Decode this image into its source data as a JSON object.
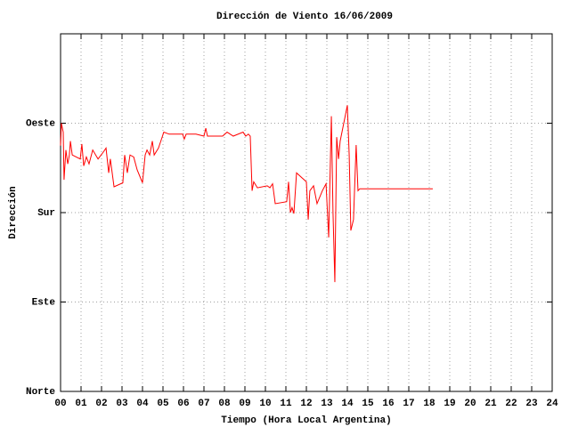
{
  "chart_data": {
    "type": "line",
    "title": "Dirección de Viento 16/06/2009",
    "x_label": "Tiempo (Hora Local Argentina)",
    "y_label": "Dirección",
    "color": "#ff0000",
    "grid": true,
    "xlim": [
      0,
      24
    ],
    "ylim": [
      0,
      360
    ],
    "xticks": [
      {
        "value": 0,
        "label": "00"
      },
      {
        "value": 1,
        "label": "01"
      },
      {
        "value": 2,
        "label": "02"
      },
      {
        "value": 3,
        "label": "03"
      },
      {
        "value": 4,
        "label": "04"
      },
      {
        "value": 5,
        "label": "05"
      },
      {
        "value": 6,
        "label": "06"
      },
      {
        "value": 7,
        "label": "07"
      },
      {
        "value": 8,
        "label": "08"
      },
      {
        "value": 9,
        "label": "09"
      },
      10,
      11,
      12,
      13,
      14,
      15,
      16,
      17,
      18,
      19,
      20,
      21,
      22,
      23,
      24
    ],
    "yticks": [
      {
        "value": 0,
        "label": "Norte"
      },
      {
        "value": 90,
        "label": "Este"
      },
      {
        "value": 180,
        "label": "Sur"
      },
      {
        "value": 270,
        "label": "Oeste"
      }
    ],
    "x": [
      0,
      0.04,
      0.13,
      0.17,
      0.26,
      0.35,
      0.43,
      0.48,
      0.57,
      0.96,
      1.04,
      1.13,
      1.26,
      1.39,
      1.57,
      1.83,
      2.09,
      2.22,
      2.35,
      2.43,
      2.61,
      3.04,
      3.13,
      3.26,
      3.39,
      3.57,
      3.74,
      4.0,
      4.13,
      4.22,
      4.35,
      4.48,
      4.57,
      4.78,
      4.96,
      5.04,
      5.3,
      5.96,
      6.04,
      6.13,
      6.61,
      7.0,
      7.09,
      7.17,
      7.91,
      8.13,
      8.43,
      8.91,
      9.04,
      9.17,
      9.26,
      9.35,
      9.43,
      9.61,
      10.09,
      10.22,
      10.35,
      10.48,
      11.04,
      11.13,
      11.22,
      11.3,
      11.39,
      11.52,
      12.0,
      12.09,
      12.17,
      12.35,
      12.52,
      12.78,
      12.96,
      13.09,
      13.22,
      13.3,
      13.39,
      13.48,
      13.57,
      13.65,
      14.0,
      14.09,
      14.17,
      14.3,
      14.43,
      14.52,
      14.61,
      18.17
    ],
    "values": [
      247.5,
      270,
      261,
      213,
      243,
      229,
      238,
      252,
      238,
      234,
      249,
      227,
      236,
      229,
      243,
      234,
      241,
      245,
      220,
      234,
      206,
      210,
      238,
      220,
      238,
      236,
      223,
      210,
      238,
      243,
      238,
      252,
      238,
      245,
      256,
      261,
      259,
      259,
      254,
      259,
      259,
      257,
      265,
      257,
      257,
      261,
      257,
      261,
      257,
      259,
      257,
      202,
      211,
      205,
      207,
      205,
      209,
      189,
      191,
      211,
      180,
      185,
      179,
      220,
      211,
      173,
      202,
      207,
      189,
      202,
      209,
      155,
      277,
      180,
      110,
      256,
      234,
      252,
      288,
      238,
      162,
      173,
      248,
      202,
      204,
      204
    ]
  }
}
